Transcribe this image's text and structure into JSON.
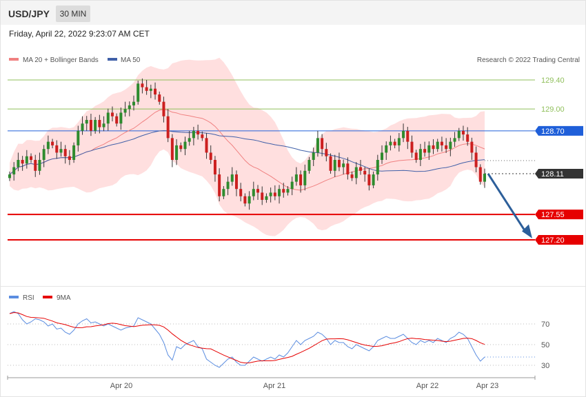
{
  "header": {
    "symbol": "USD/JPY",
    "timeframe": "30 MIN"
  },
  "timestamp": "Friday, April 22, 2022 9:23:07 AM CET",
  "legend": {
    "ma20_label": "MA 20 + Bollinger Bands",
    "ma50_label": "MA 50",
    "credit": "Research © 2022 Trading Central"
  },
  "rsi_legend": {
    "rsi_label": "RSI",
    "ma9_label": "9MA"
  },
  "colors": {
    "bollinger": "#ffd9d9",
    "ma20": "#f08080",
    "ma50": "#3f5fa8",
    "candle_up": "#2e8b2e",
    "candle_down": "#cc1f1f",
    "support": "#e60000",
    "resistance": "#8fbf5a",
    "pivot": "#1f5fd9",
    "arrow": "#2d5f9a",
    "rsi": "#5b8de0",
    "rsi_ma": "#e60000"
  },
  "chart_data": {
    "type": "candlestick",
    "y_range": [
      126.7,
      129.6
    ],
    "levels": [
      {
        "value": 129.4,
        "label": "129.40",
        "kind": "resistance"
      },
      {
        "value": 129.0,
        "label": "129.00",
        "kind": "resistance"
      },
      {
        "value": 128.7,
        "label": "128.70",
        "kind": "pivot"
      },
      {
        "value": 128.11,
        "label": "128.11",
        "kind": "last"
      },
      {
        "value": 127.55,
        "label": "127.55",
        "kind": "support"
      },
      {
        "value": 127.2,
        "label": "127.20",
        "kind": "support"
      }
    ],
    "x_labels": [
      "Apr 20",
      "Apr 21",
      "Apr 22",
      "Apr 23"
    ],
    "closes": [
      128.1,
      128.2,
      128.3,
      128.25,
      128.35,
      128.3,
      128.15,
      128.3,
      128.45,
      128.55,
      128.5,
      128.4,
      128.45,
      128.35,
      128.3,
      128.5,
      128.7,
      128.8,
      128.85,
      128.7,
      128.85,
      128.75,
      128.8,
      128.95,
      128.9,
      128.8,
      128.95,
      129.0,
      129.05,
      129.1,
      129.35,
      129.3,
      129.25,
      129.28,
      129.2,
      129.1,
      128.9,
      128.6,
      128.3,
      128.5,
      128.45,
      128.55,
      128.6,
      128.7,
      128.65,
      128.6,
      128.4,
      128.3,
      128.1,
      127.8,
      127.9,
      128.0,
      128.1,
      127.9,
      127.8,
      127.7,
      127.8,
      127.9,
      127.85,
      127.75,
      127.8,
      127.85,
      127.8,
      127.9,
      127.85,
      127.9,
      128.0,
      128.1,
      127.95,
      128.15,
      128.3,
      128.4,
      128.6,
      128.45,
      128.35,
      128.15,
      128.3,
      128.2,
      128.25,
      128.1,
      128.05,
      128.2,
      128.15,
      128.1,
      127.95,
      128.1,
      128.3,
      128.4,
      128.5,
      128.55,
      128.5,
      128.6,
      128.7,
      128.55,
      128.4,
      128.3,
      128.45,
      128.4,
      128.5,
      128.45,
      128.55,
      128.5,
      128.45,
      128.55,
      128.6,
      128.7,
      128.65,
      128.55,
      128.4,
      128.2,
      128.0,
      128.11
    ],
    "rsi_range": [
      20,
      90
    ],
    "rsi_ticks": [
      70,
      50,
      30
    ],
    "rsi": [
      80,
      82,
      80,
      74,
      70,
      72,
      75,
      74,
      72,
      68,
      70,
      65,
      66,
      62,
      60,
      64,
      70,
      73,
      75,
      71,
      72,
      70,
      68,
      70,
      68,
      66,
      64,
      66,
      67,
      68,
      76,
      74,
      72,
      70,
      65,
      60,
      52,
      40,
      35,
      48,
      46,
      50,
      52,
      54,
      48,
      46,
      36,
      33,
      30,
      28,
      32,
      36,
      38,
      33,
      30,
      30,
      34,
      38,
      36,
      34,
      36,
      38,
      36,
      40,
      38,
      42,
      48,
      54,
      50,
      54,
      56,
      58,
      62,
      60,
      56,
      50,
      54,
      52,
      52,
      48,
      46,
      50,
      48,
      46,
      44,
      48,
      54,
      56,
      58,
      56,
      56,
      58,
      60,
      56,
      52,
      50,
      54,
      52,
      54,
      52,
      56,
      54,
      52,
      56,
      58,
      62,
      60,
      56,
      48,
      40,
      34,
      38
    ]
  }
}
